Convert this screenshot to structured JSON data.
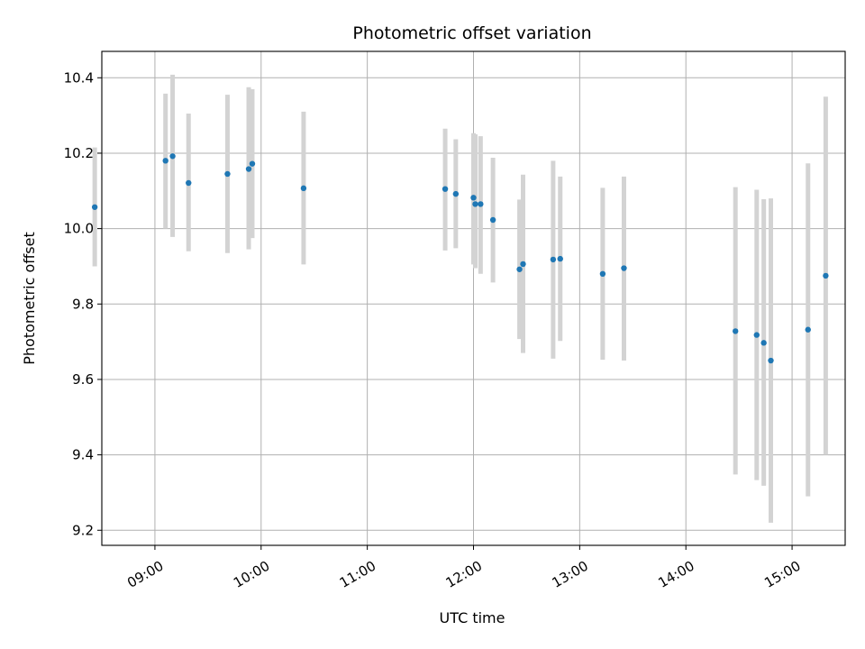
{
  "chart_data": {
    "type": "scatter",
    "title": "Photometric offset variation",
    "xlabel": "UTC time",
    "ylabel": "Photometric offset",
    "x_unit": "UTC time (HH:MM)",
    "xlim": [
      "08:30",
      "15:30"
    ],
    "ylim": [
      9.16,
      10.47
    ],
    "grid": true,
    "x_ticks": [
      "09:00",
      "10:00",
      "11:00",
      "12:00",
      "13:00",
      "14:00",
      "15:00"
    ],
    "y_ticks": [
      9.2,
      9.4,
      9.6,
      9.8,
      10.0,
      10.2,
      10.4
    ],
    "colors": {
      "point": "#1f77b4",
      "errorbar": "#d3d3d3",
      "grid": "#b0b0b0"
    },
    "points": [
      {
        "x": "08:26",
        "y": 10.057,
        "ylow": 9.9,
        "yhigh": 10.215
      },
      {
        "x": "09:06",
        "y": 10.18,
        "ylow": 10.0,
        "yhigh": 10.358
      },
      {
        "x": "09:10",
        "y": 10.192,
        "ylow": 9.978,
        "yhigh": 10.408
      },
      {
        "x": "09:19",
        "y": 10.121,
        "ylow": 9.94,
        "yhigh": 10.305
      },
      {
        "x": "09:41",
        "y": 10.145,
        "ylow": 9.935,
        "yhigh": 10.355
      },
      {
        "x": "09:53",
        "y": 10.158,
        "ylow": 9.945,
        "yhigh": 10.375
      },
      {
        "x": "09:55",
        "y": 10.172,
        "ylow": 9.975,
        "yhigh": 10.37
      },
      {
        "x": "10:24",
        "y": 10.107,
        "ylow": 9.905,
        "yhigh": 10.31
      },
      {
        "x": "11:44",
        "y": 10.105,
        "ylow": 9.942,
        "yhigh": 10.265
      },
      {
        "x": "11:50",
        "y": 10.092,
        "ylow": 9.948,
        "yhigh": 10.237
      },
      {
        "x": "12:00",
        "y": 10.082,
        "ylow": 9.905,
        "yhigh": 10.253
      },
      {
        "x": "12:01",
        "y": 10.065,
        "ylow": 9.895,
        "yhigh": 10.25
      },
      {
        "x": "12:04",
        "y": 10.065,
        "ylow": 9.88,
        "yhigh": 10.245
      },
      {
        "x": "12:11",
        "y": 10.023,
        "ylow": 9.857,
        "yhigh": 10.188
      },
      {
        "x": "12:26",
        "y": 9.892,
        "ylow": 9.707,
        "yhigh": 10.077
      },
      {
        "x": "12:28",
        "y": 9.906,
        "ylow": 9.67,
        "yhigh": 10.143
      },
      {
        "x": "12:45",
        "y": 9.918,
        "ylow": 9.655,
        "yhigh": 10.18
      },
      {
        "x": "12:49",
        "y": 9.92,
        "ylow": 9.702,
        "yhigh": 10.138
      },
      {
        "x": "13:13",
        "y": 9.88,
        "ylow": 9.652,
        "yhigh": 10.108
      },
      {
        "x": "13:25",
        "y": 9.895,
        "ylow": 9.65,
        "yhigh": 10.138
      },
      {
        "x": "14:28",
        "y": 9.728,
        "ylow": 9.348,
        "yhigh": 10.11
      },
      {
        "x": "14:40",
        "y": 9.718,
        "ylow": 9.333,
        "yhigh": 10.103
      },
      {
        "x": "14:44",
        "y": 9.697,
        "ylow": 9.318,
        "yhigh": 10.078
      },
      {
        "x": "14:48",
        "y": 9.65,
        "ylow": 9.22,
        "yhigh": 10.08
      },
      {
        "x": "15:09",
        "y": 9.732,
        "ylow": 9.29,
        "yhigh": 10.173
      },
      {
        "x": "15:19",
        "y": 9.875,
        "ylow": 9.4,
        "yhigh": 10.35
      }
    ]
  }
}
